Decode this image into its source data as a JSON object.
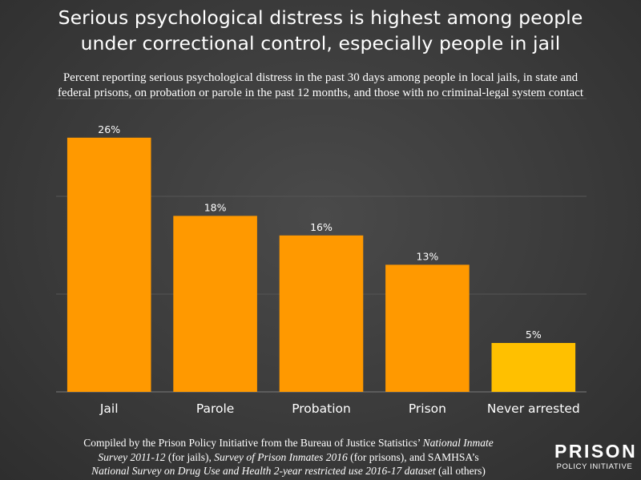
{
  "title": {
    "line1": "Serious psychological distress is highest among people",
    "line2": "under correctional control, especially people in jail"
  },
  "subtitle": {
    "line1": "Percent reporting serious psychological distress in the past 30 days among people in local jails, in state and",
    "line2": "federal prisons, on probation or parole in the past 12 months, and those with no criminal-legal system contact"
  },
  "chart_data": {
    "type": "bar",
    "categories": [
      "Jail",
      "Parole",
      "Probation",
      "Prison",
      "Never arrested"
    ],
    "values": [
      26,
      18,
      16,
      13,
      5
    ],
    "data_labels": [
      "26%",
      "18%",
      "16%",
      "13%",
      "5%"
    ],
    "ylim": [
      0,
      30
    ],
    "grid": true,
    "colors": [
      "#ff9900",
      "#ff9900",
      "#ff9900",
      "#ff9900",
      "#ffc000"
    ]
  },
  "footer": {
    "line1_pre": "Compiled by the Prison Policy Initiative from the Bureau of Justice Statistics’ ",
    "line1_italic": "National Inmate",
    "line2_italic_a": "Survey 2011-12",
    "line2_mid": " (for jails), ",
    "line2_italic_b": "Survey of Prison Inmates 2016",
    "line2_post": " (for prisons), and SAMHSA’s",
    "line3_italic": "National Survey on Drug Use and Health 2-year restricted use 2016-17 dataset",
    "line3_post": " (all others)"
  },
  "logo": {
    "big": "PRISON",
    "small": "POLICY INITIATIVE"
  }
}
